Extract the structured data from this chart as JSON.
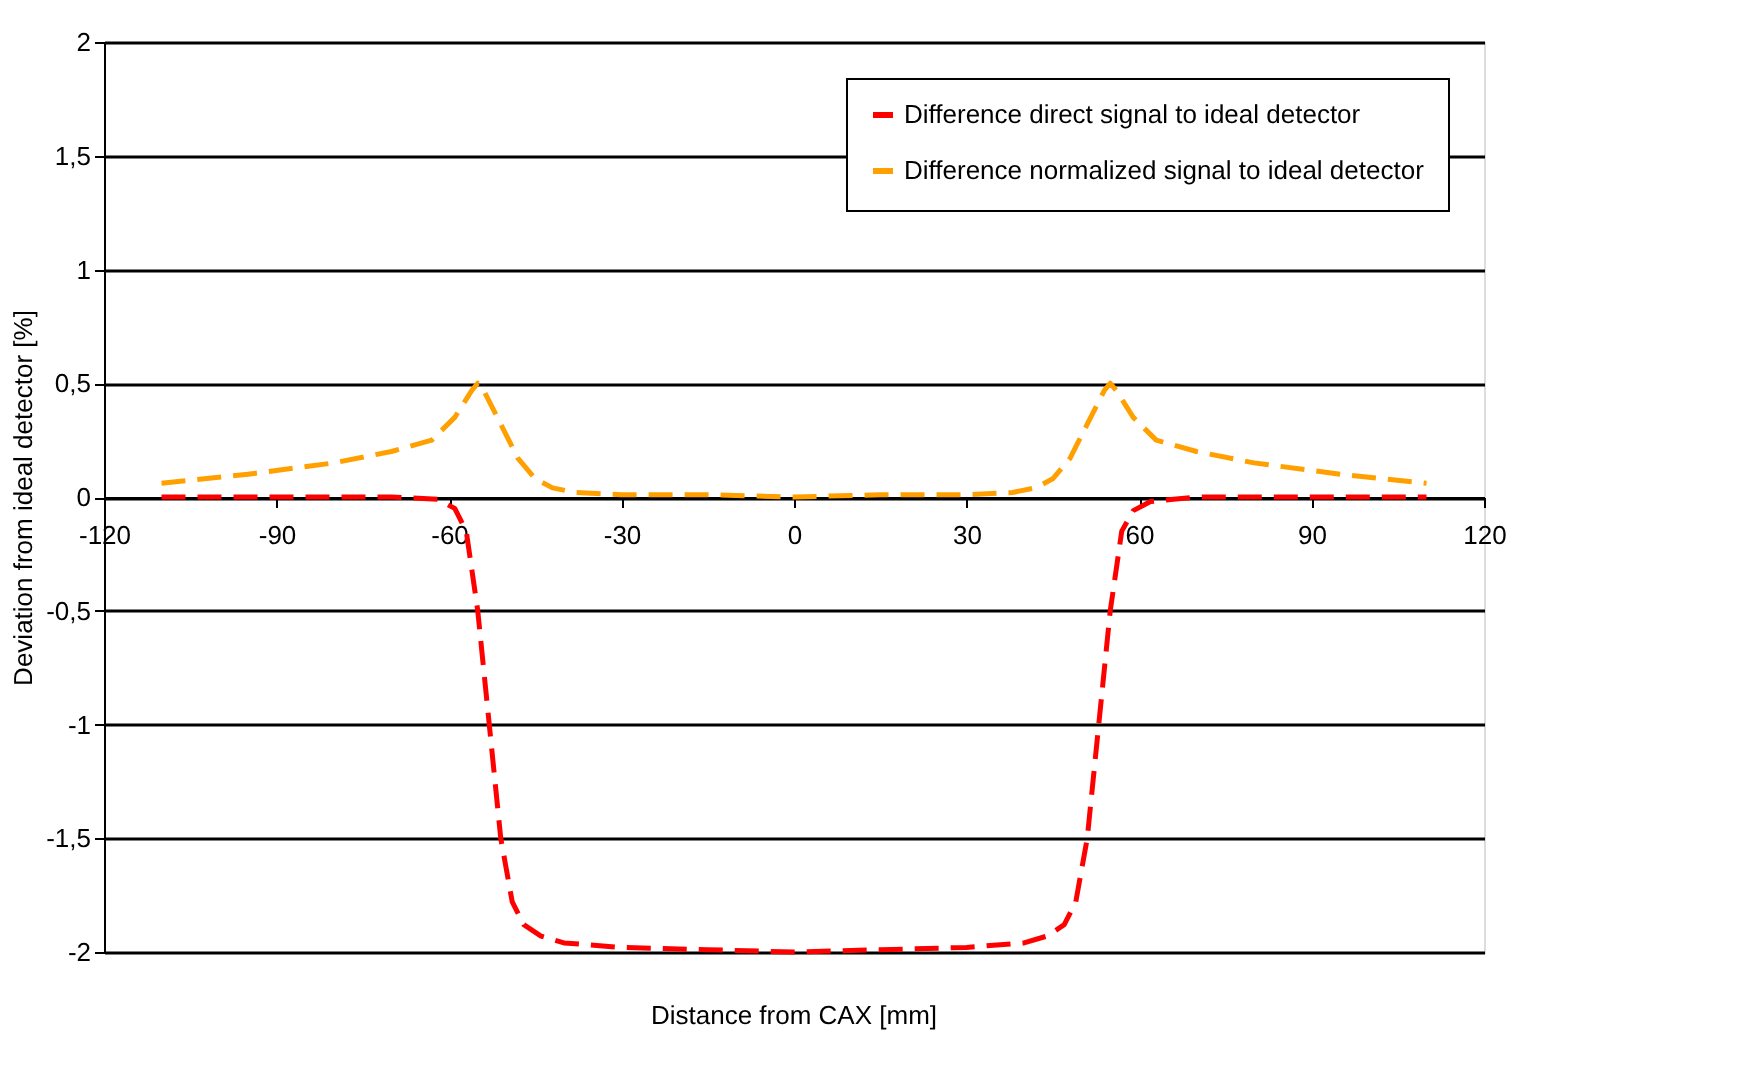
{
  "chart_data": {
    "type": "line",
    "xlabel": "Distance from CAX [mm]",
    "ylabel": "Deviation from ideal detector [%]",
    "xlim": [
      -120,
      120
    ],
    "xticks": [
      -120,
      -90,
      -60,
      -30,
      0,
      30,
      60,
      90,
      120
    ],
    "ylim": [
      -2,
      2
    ],
    "yticks": [
      {
        "value": -2,
        "label": "-2"
      },
      {
        "value": -1.5,
        "label": "-1,5"
      },
      {
        "value": -1,
        "label": "-1"
      },
      {
        "value": -0.5,
        "label": "-0,5"
      },
      {
        "value": 0,
        "label": "0"
      },
      {
        "value": 0.5,
        "label": "0,5"
      },
      {
        "value": 1,
        "label": "1"
      },
      {
        "value": 1.5,
        "label": "1,5"
      },
      {
        "value": 2,
        "label": "2"
      }
    ],
    "grid": "y",
    "legend": "top right",
    "line_style": "dashed",
    "marker": "none",
    "series": [
      {
        "name": "Difference direct signal to ideal detector",
        "color": "#ff0000",
        "x": [
          -110,
          -90,
          -70,
          -62,
          -59,
          -57,
          -55,
          -53,
          -51,
          -49,
          -47,
          -44,
          -40,
          -30,
          -15,
          0,
          15,
          30,
          40,
          44,
          47,
          49,
          51,
          53,
          55,
          57,
          59,
          62,
          66,
          70,
          90,
          110
        ],
        "values": [
          0,
          0,
          0,
          -0.01,
          -0.05,
          -0.15,
          -0.5,
          -1,
          -1.5,
          -1.78,
          -1.88,
          -1.93,
          -1.96,
          -1.98,
          -1.99,
          -2,
          -1.99,
          -1.98,
          -1.96,
          -1.93,
          -1.88,
          -1.78,
          -1.5,
          -1,
          -0.5,
          -0.15,
          -0.06,
          -0.02,
          -0.01,
          0,
          0,
          0
        ]
      },
      {
        "name": "Difference normalized signal to ideal detector",
        "color": "#ffa000",
        "x": [
          -110,
          -95,
          -80,
          -70,
          -63,
          -59,
          -56,
          -55,
          -54,
          -51,
          -48,
          -45,
          -42,
          -38,
          -30,
          -15,
          0,
          15,
          30,
          38,
          42,
          45,
          48,
          51,
          54,
          55,
          56,
          59,
          63,
          70,
          80,
          95,
          110
        ],
        "values": [
          0.06,
          0.1,
          0.15,
          0.2,
          0.25,
          0.35,
          0.47,
          0.5,
          0.47,
          0.32,
          0.17,
          0.08,
          0.04,
          0.02,
          0.01,
          0.01,
          0,
          0.01,
          0.01,
          0.02,
          0.04,
          0.08,
          0.17,
          0.32,
          0.47,
          0.5,
          0.47,
          0.35,
          0.25,
          0.2,
          0.15,
          0.1,
          0.06
        ]
      }
    ]
  }
}
